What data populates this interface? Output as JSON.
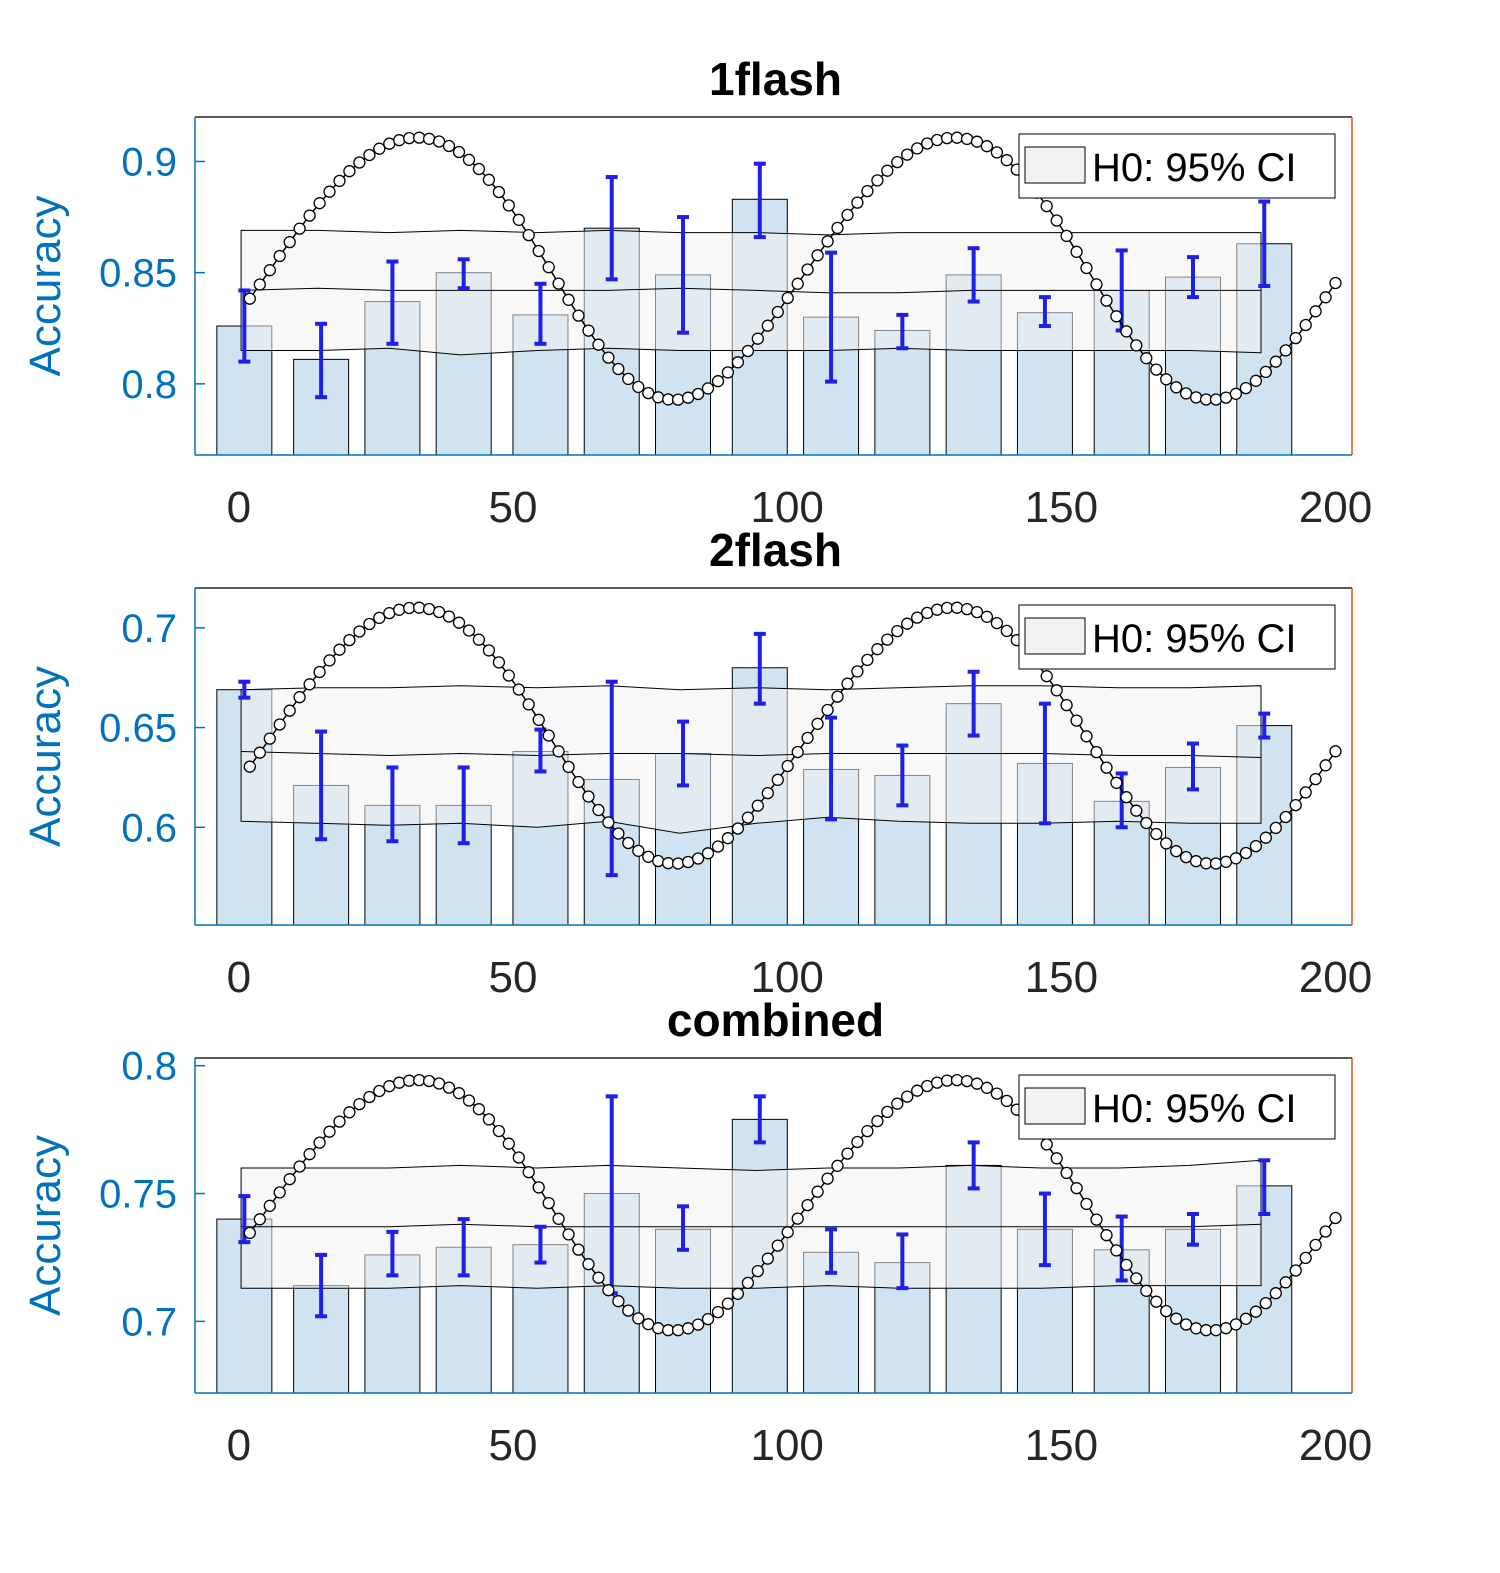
{
  "chart_data": [
    {
      "type": "bar",
      "title": "1flash",
      "ylabel": "Accuracy",
      "xlabel": "",
      "xlim": [
        -8,
        203
      ],
      "ylim": [
        0.768,
        0.92
      ],
      "xticks": [
        0,
        50,
        100,
        150,
        200
      ],
      "yticks": [
        0.8,
        0.85,
        0.9
      ],
      "ytick_labels": [
        "0.8",
        "0.85",
        "0.9"
      ],
      "legend": {
        "label": "H0: 95% CI",
        "position": "top-right"
      },
      "colors": {
        "bar": "#cfe3f1",
        "errorbar": "#1f1fe6",
        "ci_band": "#f2f2f2",
        "fit": "#000000",
        "axis": "#0072BD"
      },
      "bar_x": [
        1,
        15,
        28,
        41,
        55,
        68,
        81,
        95,
        108,
        121,
        134,
        147,
        161,
        174,
        187
      ],
      "bar_values": [
        0.826,
        0.811,
        0.837,
        0.85,
        0.831,
        0.87,
        0.849,
        0.883,
        0.83,
        0.824,
        0.849,
        0.832,
        0.842,
        0.848,
        0.863
      ],
      "error_low": [
        0.81,
        0.794,
        0.818,
        0.843,
        0.818,
        0.847,
        0.823,
        0.866,
        0.801,
        0.816,
        0.837,
        0.826,
        0.824,
        0.839,
        0.844
      ],
      "error_high": [
        0.842,
        0.827,
        0.855,
        0.856,
        0.845,
        0.893,
        0.875,
        0.899,
        0.859,
        0.831,
        0.861,
        0.839,
        0.86,
        0.857,
        0.882
      ],
      "ci_x": [
        1,
        15,
        28,
        41,
        55,
        68,
        81,
        95,
        108,
        121,
        134,
        147,
        161,
        174,
        187
      ],
      "ci_upper": [
        0.869,
        0.869,
        0.868,
        0.869,
        0.868,
        0.869,
        0.868,
        0.868,
        0.867,
        0.868,
        0.868,
        0.868,
        0.868,
        0.868,
        0.868
      ],
      "ci_mean": [
        0.842,
        0.843,
        0.842,
        0.842,
        0.842,
        0.842,
        0.843,
        0.842,
        0.841,
        0.841,
        0.842,
        0.842,
        0.842,
        0.842,
        0.842
      ],
      "ci_lower": [
        0.815,
        0.815,
        0.816,
        0.813,
        0.815,
        0.816,
        0.815,
        0.815,
        0.815,
        0.816,
        0.815,
        0.815,
        0.815,
        0.815,
        0.814
      ],
      "fit": {
        "x_start": 2,
        "x_end": 200,
        "n_points": 110,
        "baseline": 0.8535,
        "amp1": 0.0588,
        "amp2": 0.0027,
        "period": 98,
        "phase_deg": 245
      }
    },
    {
      "type": "bar",
      "title": "2flash",
      "ylabel": "Accuracy",
      "xlabel": "",
      "xlim": [
        -8,
        203
      ],
      "ylim": [
        0.551,
        0.72
      ],
      "xticks": [
        0,
        50,
        100,
        150,
        200
      ],
      "yticks": [
        0.6,
        0.65,
        0.7
      ],
      "ytick_labels": [
        "0.6",
        "0.65",
        "0.7"
      ],
      "legend": {
        "label": "H0: 95% CI",
        "position": "top-right"
      },
      "colors": {
        "bar": "#cfe3f1",
        "errorbar": "#1f1fe6",
        "ci_band": "#f2f2f2",
        "fit": "#000000",
        "axis": "#0072BD"
      },
      "bar_x": [
        1,
        15,
        28,
        41,
        55,
        68,
        81,
        95,
        108,
        121,
        134,
        147,
        161,
        174,
        187
      ],
      "bar_values": [
        0.669,
        0.621,
        0.611,
        0.611,
        0.638,
        0.624,
        0.637,
        0.68,
        0.629,
        0.626,
        0.662,
        0.632,
        0.613,
        0.63,
        0.651
      ],
      "error_low": [
        0.665,
        0.594,
        0.593,
        0.592,
        0.628,
        0.576,
        0.621,
        0.662,
        0.604,
        0.611,
        0.646,
        0.602,
        0.6,
        0.619,
        0.645
      ],
      "error_high": [
        0.673,
        0.648,
        0.63,
        0.63,
        0.649,
        0.673,
        0.653,
        0.697,
        0.655,
        0.641,
        0.678,
        0.662,
        0.627,
        0.642,
        0.657
      ],
      "ci_x": [
        1,
        15,
        28,
        41,
        55,
        68,
        81,
        95,
        108,
        121,
        134,
        147,
        161,
        174,
        187
      ],
      "ci_upper": [
        0.669,
        0.67,
        0.67,
        0.671,
        0.67,
        0.671,
        0.669,
        0.67,
        0.669,
        0.67,
        0.671,
        0.671,
        0.67,
        0.67,
        0.671
      ],
      "ci_mean": [
        0.638,
        0.637,
        0.636,
        0.637,
        0.636,
        0.637,
        0.637,
        0.636,
        0.637,
        0.637,
        0.637,
        0.637,
        0.636,
        0.636,
        0.635
      ],
      "ci_lower": [
        0.603,
        0.602,
        0.601,
        0.602,
        0.6,
        0.603,
        0.597,
        0.602,
        0.605,
        0.603,
        0.602,
        0.602,
        0.603,
        0.602,
        0.602
      ],
      "fit": {
        "x_start": 2,
        "x_end": 200,
        "n_points": 110,
        "baseline": 0.6475,
        "amp1": 0.0641,
        "amp2": 0.0024,
        "period": 98,
        "phase_deg": 245
      }
    },
    {
      "type": "bar",
      "title": "combined",
      "ylabel": "Accuracy",
      "xlabel": "",
      "xlim": [
        -8,
        203
      ],
      "ylim": [
        0.672,
        0.803
      ],
      "xticks": [
        0,
        50,
        100,
        150,
        200
      ],
      "yticks": [
        0.7,
        0.75,
        0.8
      ],
      "ytick_labels": [
        "0.7",
        "0.75",
        "0.8"
      ],
      "legend": {
        "label": "H0: 95% CI",
        "position": "top-right"
      },
      "colors": {
        "bar": "#cfe3f1",
        "errorbar": "#1f1fe6",
        "ci_band": "#f2f2f2",
        "fit": "#000000",
        "axis": "#0072BD"
      },
      "bar_x": [
        1,
        15,
        28,
        41,
        55,
        68,
        81,
        95,
        108,
        121,
        134,
        147,
        161,
        174,
        187
      ],
      "bar_values": [
        0.74,
        0.714,
        0.726,
        0.729,
        0.73,
        0.75,
        0.736,
        0.779,
        0.727,
        0.723,
        0.761,
        0.736,
        0.728,
        0.736,
        0.753
      ],
      "error_low": [
        0.731,
        0.702,
        0.718,
        0.718,
        0.723,
        0.711,
        0.728,
        0.77,
        0.719,
        0.713,
        0.752,
        0.722,
        0.716,
        0.73,
        0.742
      ],
      "error_high": [
        0.749,
        0.726,
        0.735,
        0.74,
        0.737,
        0.788,
        0.745,
        0.788,
        0.736,
        0.734,
        0.77,
        0.75,
        0.741,
        0.742,
        0.763
      ],
      "ci_x": [
        1,
        15,
        28,
        41,
        55,
        68,
        81,
        95,
        108,
        121,
        134,
        147,
        161,
        174,
        187
      ],
      "ci_upper": [
        0.76,
        0.76,
        0.76,
        0.761,
        0.76,
        0.761,
        0.76,
        0.759,
        0.76,
        0.76,
        0.761,
        0.76,
        0.76,
        0.761,
        0.763
      ],
      "ci_mean": [
        0.737,
        0.737,
        0.737,
        0.738,
        0.737,
        0.737,
        0.737,
        0.737,
        0.737,
        0.737,
        0.737,
        0.737,
        0.737,
        0.737,
        0.738
      ],
      "ci_lower": [
        0.713,
        0.713,
        0.713,
        0.714,
        0.713,
        0.714,
        0.713,
        0.713,
        0.714,
        0.713,
        0.713,
        0.713,
        0.714,
        0.714,
        0.714
      ],
      "fit": {
        "x_start": 2,
        "x_end": 200,
        "n_points": 110,
        "baseline": 0.747,
        "amp1": 0.0488,
        "amp2": 0.0025,
        "period": 98,
        "phase_deg": 245
      }
    }
  ]
}
